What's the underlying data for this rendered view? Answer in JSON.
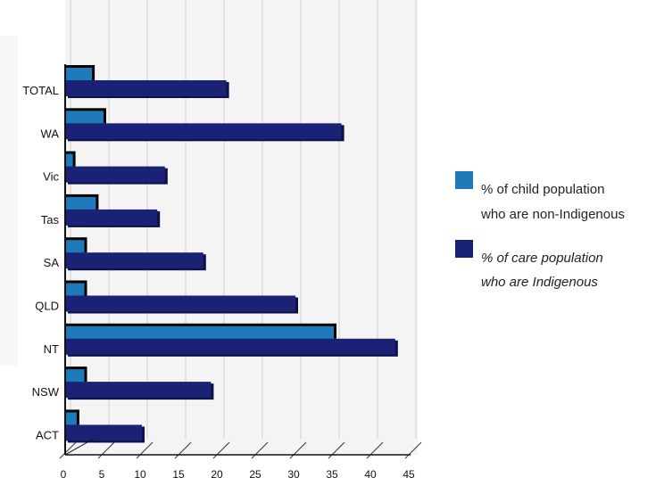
{
  "chart_data": {
    "type": "bar",
    "orientation": "horizontal",
    "title": "",
    "xlabel": "",
    "ylabel": "",
    "categories": [
      "TOTAL",
      "WA",
      "Vic",
      "Tas",
      "SA",
      "QLD",
      "NT",
      "NSW",
      "ACT"
    ],
    "series": [
      {
        "name": "% of child population who are non-Indigenous",
        "legend_lines": [
          "% of child population",
          "who are non-Indigenous"
        ],
        "color": "#1e7ab8",
        "values": [
          3.5,
          5,
          1,
          4,
          2.5,
          2.5,
          35,
          2.5,
          1.5
        ]
      },
      {
        "name": "% of care population who are Indigenous",
        "legend_lines": [
          "% of care population",
          "who are Indigenous"
        ],
        "color": "#1a2275",
        "values": [
          21,
          36,
          13,
          12,
          18,
          30,
          43,
          19,
          10
        ]
      }
    ],
    "xlim": [
      0,
      45
    ],
    "xticks": [
      0,
      5,
      10,
      15,
      20,
      25,
      30,
      35,
      40,
      45
    ],
    "grid": true,
    "legend_position": "right"
  }
}
